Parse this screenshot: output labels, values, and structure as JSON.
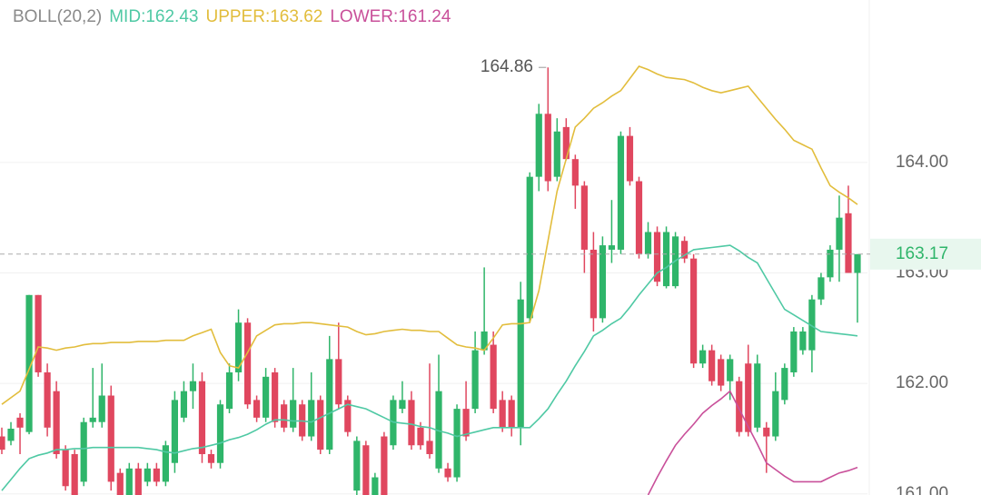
{
  "chart_data": {
    "type": "candlestick",
    "indicator": "BOLL(20,2)",
    "separator": ":",
    "ylim": [
      160.99,
      165.47
    ],
    "yticks": [
      {
        "value": 161,
        "label": "161.00"
      },
      {
        "value": 162,
        "label": "162.00"
      },
      {
        "value": 163,
        "label": "163.00"
      },
      {
        "value": 164,
        "label": "164.00"
      }
    ],
    "grid": true,
    "up_color": "#2fb56a",
    "down_color": "#e0475f",
    "last_price": 163.17,
    "high_annotation": 164.86,
    "ohlc": [
      [
        161.52,
        161.6,
        161.36,
        161.4
      ],
      [
        161.48,
        161.65,
        161.44,
        161.59
      ],
      [
        161.69,
        161.73,
        161.36,
        161.6
      ],
      [
        161.56,
        162.8,
        161.54,
        162.8
      ],
      [
        162.8,
        162.8,
        162.06,
        162.1
      ],
      [
        162.1,
        162.18,
        161.52,
        161.6
      ],
      [
        161.93,
        162.02,
        161.32,
        161.36
      ],
      [
        161.4,
        161.44,
        161.03,
        161.07
      ],
      [
        161.36,
        161.4,
        160.99,
        160.99
      ],
      [
        161.11,
        161.69,
        161.07,
        161.65
      ],
      [
        161.65,
        162.14,
        161.6,
        161.69
      ],
      [
        161.65,
        162.18,
        161.6,
        161.89
      ],
      [
        161.89,
        161.98,
        161.03,
        161.11
      ],
      [
        161.19,
        161.23,
        160.99,
        160.99
      ],
      [
        160.99,
        161.28,
        160.99,
        161.23
      ],
      [
        161.23,
        161.28,
        160.99,
        160.99
      ],
      [
        161.11,
        161.28,
        161.07,
        161.23
      ],
      [
        161.23,
        161.28,
        161.07,
        161.11
      ],
      [
        161.11,
        161.48,
        161.07,
        161.44
      ],
      [
        161.28,
        161.93,
        161.19,
        161.85
      ],
      [
        161.69,
        162.02,
        161.65,
        161.93
      ],
      [
        161.93,
        162.18,
        161.77,
        162.02
      ],
      [
        162.02,
        162.1,
        161.28,
        161.36
      ],
      [
        161.36,
        161.4,
        161.23,
        161.28
      ],
      [
        161.28,
        161.85,
        161.23,
        161.81
      ],
      [
        161.77,
        162.18,
        161.73,
        162.1
      ],
      [
        162.1,
        162.67,
        162.02,
        162.55
      ],
      [
        162.55,
        162.59,
        161.77,
        161.81
      ],
      [
        161.85,
        161.89,
        161.65,
        161.69
      ],
      [
        161.69,
        162.14,
        161.65,
        162.06
      ],
      [
        162.1,
        162.14,
        161.6,
        161.65
      ],
      [
        161.81,
        161.85,
        161.56,
        161.6
      ],
      [
        161.6,
        162.14,
        161.56,
        161.85
      ],
      [
        161.81,
        161.85,
        161.48,
        161.52
      ],
      [
        161.52,
        162.1,
        161.48,
        161.85
      ],
      [
        161.85,
        161.89,
        161.36,
        161.4
      ],
      [
        161.4,
        162.43,
        161.36,
        162.22
      ],
      [
        162.22,
        162.55,
        161.77,
        161.81
      ],
      [
        161.85,
        161.89,
        161.52,
        161.56
      ],
      [
        161.03,
        161.52,
        160.99,
        161.48
      ],
      [
        161.44,
        161.48,
        160.99,
        160.99
      ],
      [
        160.99,
        161.19,
        160.99,
        161.15
      ],
      [
        161.52,
        161.56,
        160.99,
        160.99
      ],
      [
        161.44,
        161.89,
        161.4,
        161.85
      ],
      [
        161.77,
        162.02,
        161.73,
        161.85
      ],
      [
        161.85,
        161.93,
        161.4,
        161.44
      ],
      [
        161.6,
        161.65,
        161.4,
        161.44
      ],
      [
        161.48,
        162.18,
        161.32,
        161.36
      ],
      [
        161.23,
        162.26,
        161.19,
        161.93
      ],
      [
        161.23,
        161.28,
        161.11,
        161.15
      ],
      [
        161.15,
        161.81,
        161.11,
        161.77
      ],
      [
        161.77,
        162.02,
        161.48,
        161.52
      ],
      [
        161.77,
        162.47,
        161.73,
        162.3
      ],
      [
        162.3,
        163.05,
        162.26,
        162.47
      ],
      [
        162.35,
        162.47,
        161.73,
        161.77
      ],
      [
        161.85,
        161.93,
        161.56,
        161.6
      ],
      [
        161.85,
        161.89,
        161.52,
        161.6
      ],
      [
        161.6,
        162.92,
        161.44,
        162.76
      ],
      [
        162.59,
        163.91,
        162.55,
        163.87
      ],
      [
        163.87,
        164.53,
        163.74,
        164.44
      ],
      [
        164.44,
        164.86,
        163.74,
        163.83
      ],
      [
        163.87,
        164.4,
        163.83,
        164.28
      ],
      [
        164.32,
        164.4,
        164.02,
        164.03
      ],
      [
        164.03,
        164.07,
        163.58,
        163.79
      ],
      [
        163.79,
        163.83,
        163.0,
        163.21
      ],
      [
        163.21,
        163.37,
        162.47,
        162.59
      ],
      [
        162.59,
        163.33,
        162.55,
        163.25
      ],
      [
        163.21,
        163.66,
        163.09,
        163.25
      ],
      [
        163.21,
        164.28,
        163.17,
        164.24
      ],
      [
        164.24,
        164.32,
        163.79,
        163.83
      ],
      [
        163.83,
        163.87,
        163.13,
        163.17
      ],
      [
        163.17,
        163.46,
        163.13,
        163.37
      ],
      [
        163.37,
        163.42,
        162.88,
        162.92
      ],
      [
        162.88,
        163.42,
        162.86,
        163.37
      ],
      [
        162.88,
        163.37,
        162.86,
        163.33
      ],
      [
        163.29,
        163.33,
        163.09,
        163.13
      ],
      [
        163.13,
        163.17,
        162.14,
        162.18
      ],
      [
        162.18,
        162.35,
        162.14,
        162.3
      ],
      [
        162.3,
        162.35,
        161.98,
        162.02
      ],
      [
        162.22,
        162.26,
        161.93,
        161.98
      ],
      [
        162.02,
        162.26,
        161.85,
        162.22
      ],
      [
        162.02,
        162.06,
        161.52,
        161.56
      ],
      [
        162.18,
        162.35,
        161.52,
        161.56
      ],
      [
        161.6,
        162.26,
        161.56,
        162.18
      ],
      [
        161.6,
        161.65,
        161.19,
        161.52
      ],
      [
        161.52,
        162.1,
        161.48,
        161.93
      ],
      [
        161.85,
        162.18,
        161.81,
        162.14
      ],
      [
        162.1,
        162.51,
        162.06,
        162.47
      ],
      [
        162.3,
        162.51,
        162.26,
        162.47
      ],
      [
        162.3,
        162.8,
        162.1,
        162.76
      ],
      [
        162.76,
        163.0,
        162.71,
        162.96
      ],
      [
        162.96,
        163.25,
        162.92,
        163.21
      ],
      [
        163.21,
        163.7,
        162.92,
        163.5
      ],
      [
        163.54,
        163.79,
        163.0,
        163.0
      ],
      [
        163.0,
        163.17,
        162.55,
        163.17
      ]
    ],
    "series": [
      {
        "name": "MID",
        "color": "#4fc9a4",
        "values": [
          161.03,
          161.13,
          161.23,
          161.32,
          161.35,
          161.37,
          161.4,
          161.4,
          161.41,
          161.41,
          161.42,
          161.42,
          161.42,
          161.42,
          161.42,
          161.42,
          161.41,
          161.4,
          161.38,
          161.37,
          161.39,
          161.41,
          161.42,
          161.44,
          161.46,
          161.49,
          161.51,
          161.54,
          161.58,
          161.63,
          161.67,
          161.67,
          161.66,
          161.66,
          161.65,
          161.69,
          161.73,
          161.77,
          161.81,
          161.79,
          161.77,
          161.73,
          161.69,
          161.65,
          161.64,
          161.63,
          161.61,
          161.6,
          161.57,
          161.55,
          161.52,
          161.54,
          161.56,
          161.58,
          161.6,
          161.6,
          161.6,
          161.6,
          161.6,
          161.68,
          161.77,
          161.9,
          162.02,
          162.16,
          162.29,
          162.43,
          162.48,
          162.54,
          162.59,
          162.69,
          162.8,
          162.9,
          163.0,
          163.05,
          163.11,
          163.16,
          163.21,
          163.22,
          163.23,
          163.24,
          163.25,
          163.2,
          163.14,
          163.09,
          162.95,
          162.81,
          162.67,
          162.62,
          162.57,
          162.52,
          162.47,
          162.46,
          162.45,
          162.44,
          162.43
        ]
      },
      {
        "name": "UPPER",
        "color": "#e2bd3c",
        "values": [
          161.81,
          161.87,
          161.93,
          162.13,
          162.33,
          162.32,
          162.3,
          162.32,
          162.33,
          162.35,
          162.36,
          162.36,
          162.37,
          162.37,
          162.37,
          162.38,
          162.38,
          162.38,
          162.39,
          162.39,
          162.39,
          162.43,
          162.46,
          162.49,
          162.28,
          162.16,
          162.14,
          162.28,
          162.43,
          162.48,
          162.53,
          162.54,
          162.54,
          162.55,
          162.55,
          162.54,
          162.53,
          162.52,
          162.51,
          162.47,
          162.44,
          162.45,
          162.47,
          162.48,
          162.49,
          162.48,
          162.48,
          162.47,
          162.47,
          162.41,
          162.35,
          162.33,
          162.32,
          162.3,
          162.41,
          162.53,
          162.54,
          162.54,
          162.55,
          162.84,
          163.29,
          163.74,
          164.03,
          164.32,
          164.4,
          164.49,
          164.54,
          164.6,
          164.65,
          164.76,
          164.87,
          164.84,
          164.8,
          164.77,
          164.76,
          164.75,
          164.72,
          164.68,
          164.65,
          164.63,
          164.65,
          164.67,
          164.69,
          164.59,
          164.49,
          164.39,
          164.3,
          164.2,
          164.16,
          164.12,
          163.95,
          163.79,
          163.73,
          163.68,
          163.62
        ]
      },
      {
        "name": "LOWER",
        "color": "#c9509a",
        "values": [
          null,
          null,
          null,
          null,
          null,
          null,
          null,
          null,
          null,
          null,
          null,
          null,
          null,
          null,
          null,
          null,
          null,
          null,
          null,
          null,
          null,
          null,
          null,
          null,
          null,
          null,
          null,
          null,
          null,
          null,
          null,
          null,
          null,
          null,
          null,
          null,
          null,
          null,
          null,
          null,
          null,
          null,
          null,
          null,
          null,
          null,
          null,
          null,
          null,
          null,
          null,
          null,
          null,
          null,
          null,
          null,
          null,
          null,
          null,
          null,
          null,
          null,
          null,
          null,
          null,
          null,
          null,
          null,
          null,
          null,
          null,
          160.99,
          161.15,
          161.3,
          161.44,
          161.54,
          161.63,
          161.73,
          161.8,
          161.86,
          161.93,
          161.77,
          161.61,
          161.45,
          161.28,
          161.22,
          161.16,
          161.11,
          161.11,
          161.11,
          161.11,
          161.15,
          161.19,
          161.21,
          161.24
        ]
      }
    ]
  }
}
